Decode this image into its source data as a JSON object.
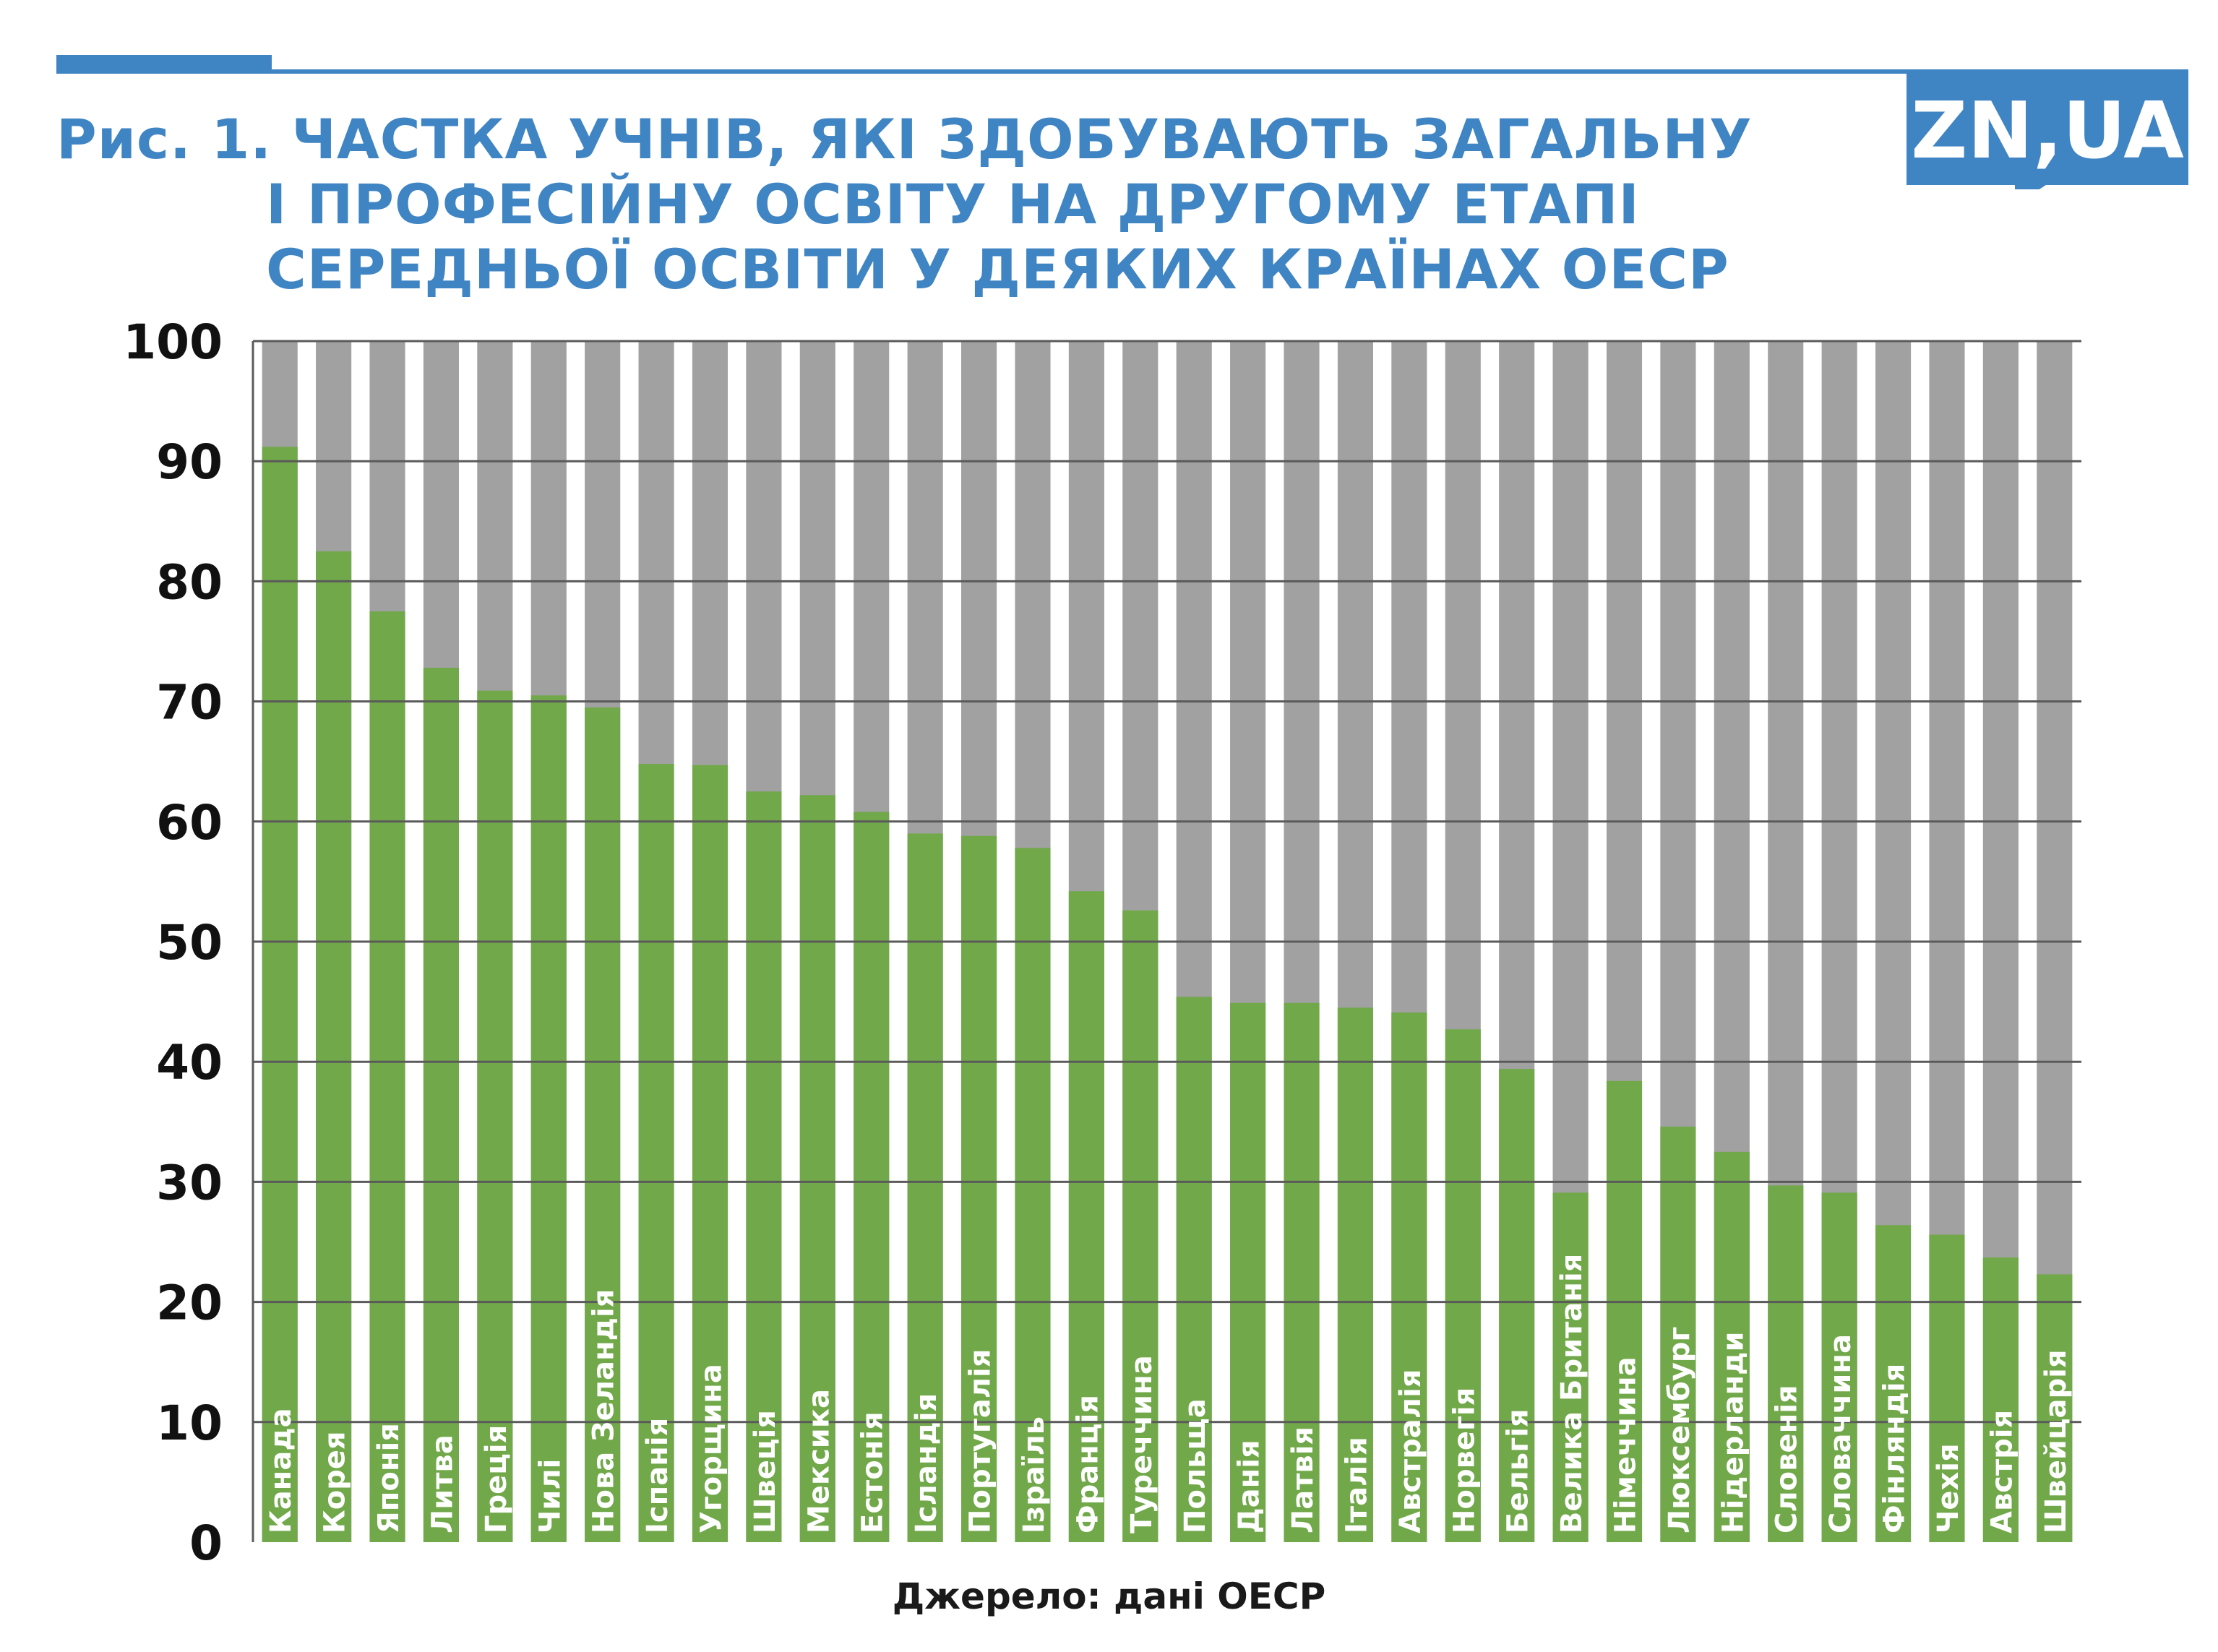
{
  "title": {
    "line1": "Рис. 1. ЧАСТКА УЧНІВ, ЯКІ ЗДОБУВАЮТЬ ЗАГАЛЬНУ",
    "line2": "І ПРОФЕСІЙНУ ОСВІТУ НА ДРУГОМУ ЕТАПІ",
    "line3": "СЕРЕДНЬОЇ ОСВІТИ У ДЕЯКИХ КРАЇНАХ ОЕСР"
  },
  "logo": {
    "text": "ZN,UA"
  },
  "source": "Джерело: дані ОЕСР",
  "colors": {
    "accent": "#3f84c3",
    "bar": "#71a84a",
    "background_bar": "#a1a1a1",
    "grid": "#5a5a5a"
  },
  "chart_data": {
    "type": "bar",
    "stacked_to": 100,
    "categories": [
      "Канада",
      "Корея",
      "Японія",
      "Литва",
      "Греція",
      "Чилі",
      "Нова Зеландія",
      "Іспанія",
      "Угорщина",
      "Швеція",
      "Мексика",
      "Естонія",
      "Ісландія",
      "Португалія",
      "Ізраїль",
      "Франція",
      "Туреччина",
      "Польща",
      "Данія",
      "Латвія",
      "Італія",
      "Австралія",
      "Норвегія",
      "Бельгія",
      "Велика Британія",
      "Німеччина",
      "Люксембург",
      "Нідерланди",
      "Словенія",
      "Словаччина",
      "Фінляндія",
      "Чехія",
      "Австрія",
      "Швейцарія"
    ],
    "values": [
      91.2,
      82.5,
      77.5,
      72.8,
      70.9,
      70.5,
      69.5,
      64.8,
      64.7,
      62.5,
      62.2,
      60.8,
      59.0,
      58.8,
      57.8,
      54.2,
      52.6,
      45.4,
      44.9,
      44.9,
      44.5,
      44.1,
      42.7,
      39.4,
      29.1,
      38.4,
      34.6,
      32.5,
      29.7,
      29.1,
      26.4,
      25.6,
      23.7,
      22.3
    ],
    "yticks": [
      0,
      10,
      20,
      30,
      40,
      50,
      60,
      70,
      80,
      90,
      100
    ],
    "ylim": [
      0,
      100
    ],
    "grid": true
  }
}
